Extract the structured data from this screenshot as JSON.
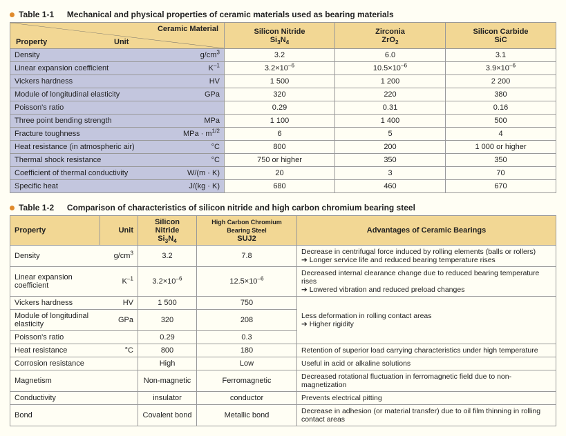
{
  "colors": {
    "header_bg": "#f2d794",
    "prop_bg_t1": "#c3c6de",
    "page_bg": "#fffef4",
    "bullet": "#e08a2b",
    "border": "#999999"
  },
  "table1": {
    "title_label": "Table 1-1",
    "title_text": "Mechanical and physical properties of ceramic materials used as bearing materials",
    "corner_ceramic": "Ceramic Material",
    "corner_property": "Property",
    "corner_unit": "Unit",
    "cols": [
      {
        "name": "Silicon Nitride",
        "formula": "Si3N4"
      },
      {
        "name": "Zirconia",
        "formula": "ZrO2"
      },
      {
        "name": "Silicon Carbide",
        "formula": "SiC"
      }
    ],
    "rows": [
      {
        "prop": "Density",
        "unit": "g/cm3",
        "v": [
          "3.2",
          "6.0",
          "3.1"
        ]
      },
      {
        "prop": "Linear expansion coefficient",
        "unit": "K−1",
        "v": [
          "3.2×10−6",
          "10.5×10−6",
          "3.9×10−6"
        ]
      },
      {
        "prop": "Vickers hardness",
        "unit": "HV",
        "v": [
          "1 500",
          "1 200",
          "2 200"
        ]
      },
      {
        "prop": "Module of longitudinal elasticity",
        "unit": "GPa",
        "v": [
          "320",
          "220",
          "380"
        ]
      },
      {
        "prop": "Poisson's ratio",
        "unit": "",
        "v": [
          "0.29",
          "0.31",
          "0.16"
        ]
      },
      {
        "prop": "Three point bending strength",
        "unit": "MPa",
        "v": [
          "1 100",
          "1 400",
          "500"
        ]
      },
      {
        "prop": "Fracture toughness",
        "unit": "MPa · m1/2",
        "v": [
          "6",
          "5",
          "4"
        ]
      },
      {
        "prop": "Heat resistance (in atmospheric air)",
        "unit": "°C",
        "v": [
          "800",
          "200",
          "1 000 or higher"
        ]
      },
      {
        "prop": "Thermal shock resistance",
        "unit": "°C",
        "v": [
          "750 or higher",
          "350",
          "350"
        ]
      },
      {
        "prop": "Coefficient of thermal conductivity",
        "unit": "W/(m · K)",
        "v": [
          "20",
          "3",
          "70"
        ]
      },
      {
        "prop": "Specific heat",
        "unit": "J/(kg · K)",
        "v": [
          "680",
          "460",
          "670"
        ]
      }
    ]
  },
  "table2": {
    "title_label": "Table 1-2",
    "title_text": "Comparison of characteristics of silicon nitride and high carbon chromium bearing steel",
    "hdr_property": "Property",
    "hdr_unit": "Unit",
    "hdr_sin": "Silicon Nitride",
    "hdr_sin_formula": "Si3N4",
    "hdr_steel": "High Carbon Chromium Bearing Steel",
    "hdr_steel_code": "SUJ2",
    "hdr_adv": "Advantages of Ceramic Bearings",
    "rows": [
      {
        "prop": "Density",
        "unit": "g/cm3",
        "sin": "3.2",
        "steel": "7.8",
        "adv": "Decrease in centrifugal force induced by rolling elements (balls or rollers)\n➔ Longer service life and reduced bearing temperature rises",
        "span": 1
      },
      {
        "prop": "Linear expansion coefficient",
        "unit": "K−1",
        "sin": "3.2×10−6",
        "steel": "12.5×10−6",
        "adv": "Decreased internal clearance change due to reduced bearing temperature rises\n➔ Lowered vibration and reduced preload changes",
        "span": 1
      },
      {
        "prop": "Vickers hardness",
        "unit": "HV",
        "sin": "1 500",
        "steel": "750",
        "adv": "Less deformation in rolling contact areas\n➔ Higher rigidity",
        "span": 3
      },
      {
        "prop": "Module of longitudinal elasticity",
        "unit": "GPa",
        "sin": "320",
        "steel": "208",
        "span": 0
      },
      {
        "prop": "Poisson's ratio",
        "unit": "",
        "sin": "0.29",
        "steel": "0.3",
        "span": 0
      },
      {
        "prop": "Heat resistance",
        "unit": "°C",
        "sin": "800",
        "steel": "180",
        "adv": "Retention of superior load carrying characteristics under high temperature",
        "span": 1
      },
      {
        "prop": "Corrosion resistance",
        "unit": "",
        "sin": "High",
        "steel": "Low",
        "adv": "Useful in acid or alkaline solutions",
        "span": 1
      },
      {
        "prop": "Magnetism",
        "unit": "",
        "sin": "Non-magnetic",
        "steel": "Ferromagnetic",
        "adv": "Decreased rotational fluctuation in ferromagnetic field due to non-magnetization",
        "span": 1
      },
      {
        "prop": "Conductivity",
        "unit": "",
        "sin": "insulator",
        "steel": "conductor",
        "adv": "Prevents electrical pitting",
        "span": 1
      },
      {
        "prop": "Bond",
        "unit": "",
        "sin": "Covalent bond",
        "steel": "Metallic bond",
        "adv": "Decrease in adhesion (or material transfer) due to oil film thinning in rolling contact areas",
        "span": 1
      }
    ]
  }
}
